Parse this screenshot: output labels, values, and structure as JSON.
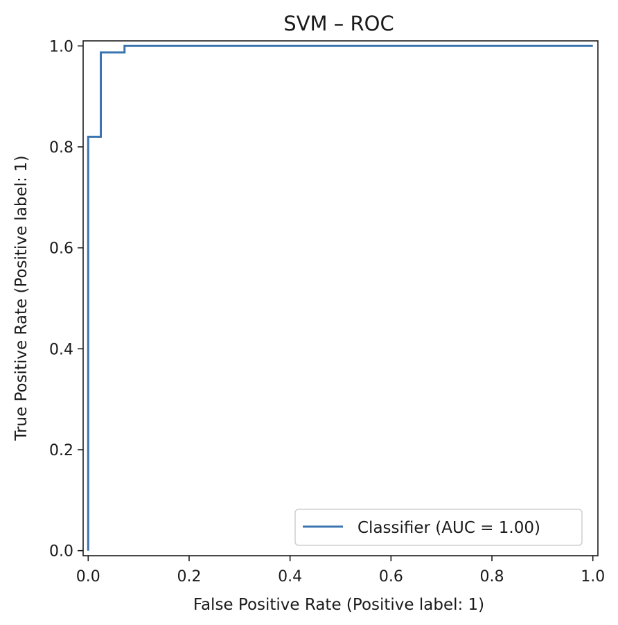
{
  "chart_data": {
    "type": "line",
    "title": "SVM – ROC",
    "xlabel": "False Positive Rate (Positive label: 1)",
    "ylabel": "True Positive Rate (Positive label: 1)",
    "xlim": [
      -0.01,
      1.01
    ],
    "ylim": [
      -0.01,
      1.01
    ],
    "xticks": [
      0.0,
      0.2,
      0.4,
      0.6,
      0.8,
      1.0
    ],
    "yticks": [
      0.0,
      0.2,
      0.4,
      0.6,
      0.8,
      1.0
    ],
    "xtick_labels": [
      "0.0",
      "0.2",
      "0.4",
      "0.6",
      "0.8",
      "1.0"
    ],
    "ytick_labels": [
      "0.0",
      "0.2",
      "0.4",
      "0.6",
      "0.8",
      "1.0"
    ],
    "grid": false,
    "legend_position": "lower-right",
    "series": [
      {
        "name": "Classifier (AUC = 1.00)",
        "color": "#3b75af",
        "x": [
          0.0,
          0.0,
          0.0,
          0.025,
          0.025,
          0.072,
          0.072,
          1.0
        ],
        "y": [
          0.0,
          0.82,
          0.82,
          0.82,
          0.987,
          0.987,
          1.0,
          1.0
        ]
      }
    ]
  }
}
